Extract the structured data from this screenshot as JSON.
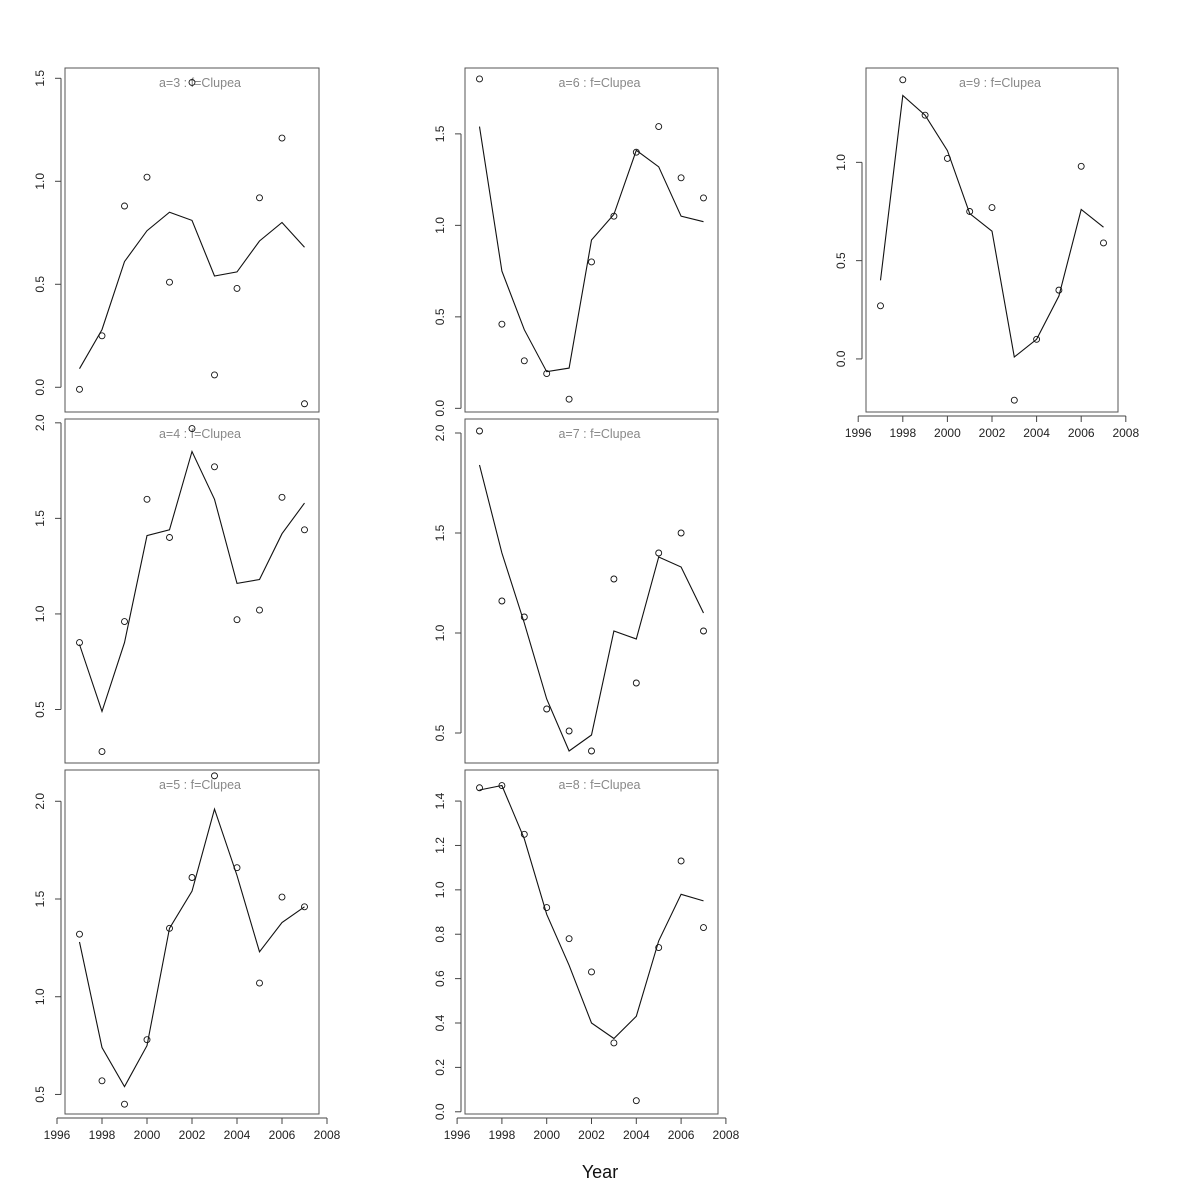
{
  "figure": {
    "xlabel": "Year"
  },
  "chart_data": [
    {
      "type": "line",
      "title": "a=3  :  f=Clupea",
      "xlim": [
        1997,
        2007
      ],
      "ylim": [
        -0.12,
        1.55
      ],
      "yticks": [
        "0.0",
        "0.5",
        "1.0",
        "1.5"
      ],
      "ytick_values": [
        0,
        0.5,
        1.0,
        1.5
      ],
      "xticks": [],
      "x": [
        1997,
        1998,
        1999,
        2000,
        2001,
        2002,
        2003,
        2004,
        2005,
        2006,
        2007
      ],
      "series": [
        {
          "kind": "line",
          "values": [
            0.09,
            0.28,
            0.61,
            0.76,
            0.85,
            0.81,
            0.54,
            0.56,
            0.71,
            0.8,
            0.68
          ]
        },
        {
          "kind": "points",
          "values": [
            -0.01,
            0.25,
            0.88,
            1.02,
            0.51,
            1.48,
            0.06,
            0.48,
            0.92,
            1.21,
            -0.08
          ]
        }
      ]
    },
    {
      "type": "line",
      "title": "a=4  :  f=Clupea",
      "xlim": [
        1997,
        2007
      ],
      "ylim": [
        0.22,
        2.02
      ],
      "yticks": [
        "0.5",
        "1.0",
        "1.5",
        "2.0"
      ],
      "ytick_values": [
        0.5,
        1.0,
        1.5,
        2.0
      ],
      "xticks": [],
      "x": [
        1997,
        1998,
        1999,
        2000,
        2001,
        2002,
        2003,
        2004,
        2005,
        2006,
        2007
      ],
      "series": [
        {
          "kind": "line",
          "values": [
            0.84,
            0.49,
            0.85,
            1.41,
            1.44,
            1.85,
            1.6,
            1.16,
            1.18,
            1.42,
            1.58
          ]
        },
        {
          "kind": "points",
          "values": [
            0.85,
            0.28,
            0.96,
            1.6,
            1.4,
            1.97,
            1.77,
            0.97,
            1.02,
            1.61,
            1.44
          ]
        }
      ]
    },
    {
      "type": "line",
      "title": "a=5  :  f=Clupea",
      "xlim": [
        1997,
        2007
      ],
      "ylim": [
        0.4,
        2.16
      ],
      "yticks": [
        "0.5",
        "1.0",
        "1.5",
        "2.0"
      ],
      "ytick_values": [
        0.5,
        1.0,
        1.5,
        2.0
      ],
      "xticks": [
        "1996",
        "1998",
        "2000",
        "2002",
        "2004",
        "2006",
        "2008"
      ],
      "x": [
        1997,
        1998,
        1999,
        2000,
        2001,
        2002,
        2003,
        2004,
        2005,
        2006,
        2007
      ],
      "series": [
        {
          "kind": "line",
          "values": [
            1.28,
            0.74,
            0.54,
            0.75,
            1.35,
            1.54,
            1.96,
            1.62,
            1.23,
            1.38,
            1.46
          ]
        },
        {
          "kind": "points",
          "values": [
            1.32,
            0.57,
            0.45,
            0.78,
            1.35,
            1.61,
            2.13,
            1.66,
            1.07,
            1.51,
            1.46
          ]
        }
      ]
    },
    {
      "type": "line",
      "title": "a=6  :  f=Clupea",
      "xlim": [
        1997,
        2007
      ],
      "ylim": [
        -0.02,
        1.86
      ],
      "yticks": [
        "0.0",
        "0.5",
        "1.0",
        "1.5"
      ],
      "ytick_values": [
        0,
        0.5,
        1.0,
        1.5
      ],
      "xticks": [],
      "x": [
        1997,
        1998,
        1999,
        2000,
        2001,
        2002,
        2003,
        2004,
        2005,
        2006,
        2007
      ],
      "series": [
        {
          "kind": "line",
          "values": [
            1.54,
            0.75,
            0.43,
            0.2,
            0.22,
            0.92,
            1.06,
            1.41,
            1.32,
            1.05,
            1.02
          ]
        },
        {
          "kind": "points",
          "values": [
            1.8,
            0.46,
            0.26,
            0.19,
            0.05,
            0.8,
            1.05,
            1.4,
            1.54,
            1.26,
            1.15
          ]
        }
      ]
    },
    {
      "type": "line",
      "title": "a=7  :  f=Clupea",
      "xlim": [
        1997,
        2007
      ],
      "ylim": [
        0.35,
        2.07
      ],
      "yticks": [
        "0.5",
        "1.0",
        "1.5",
        "2.0"
      ],
      "ytick_values": [
        0.5,
        1.0,
        1.5,
        2.0
      ],
      "xticks": [],
      "x": [
        1997,
        1998,
        1999,
        2000,
        2001,
        2002,
        2003,
        2004,
        2005,
        2006,
        2007
      ],
      "series": [
        {
          "kind": "line",
          "values": [
            1.84,
            1.4,
            1.05,
            0.67,
            0.41,
            0.49,
            1.01,
            0.97,
            1.38,
            1.33,
            1.1
          ]
        },
        {
          "kind": "points",
          "values": [
            2.01,
            1.16,
            1.08,
            0.62,
            0.51,
            0.41,
            1.27,
            0.75,
            1.4,
            1.5,
            1.01
          ]
        }
      ]
    },
    {
      "type": "line",
      "title": "a=8  :  f=Clupea",
      "xlim": [
        1997,
        2007
      ],
      "ylim": [
        -0.01,
        1.54
      ],
      "yticks": [
        "0.0",
        "0.2",
        "0.4",
        "0.6",
        "0.8",
        "1.0",
        "1.2",
        "1.4"
      ],
      "ytick_values": [
        0,
        0.2,
        0.4,
        0.6,
        0.8,
        1.0,
        1.2,
        1.4
      ],
      "xticks": [
        "1996",
        "1998",
        "2000",
        "2002",
        "2004",
        "2006",
        "2008"
      ],
      "x": [
        1997,
        1998,
        1999,
        2000,
        2001,
        2002,
        2003,
        2004,
        2005,
        2006,
        2007
      ],
      "series": [
        {
          "kind": "line",
          "values": [
            1.45,
            1.47,
            1.23,
            0.89,
            0.66,
            0.4,
            0.33,
            0.43,
            0.77,
            0.98,
            0.95
          ]
        },
        {
          "kind": "points",
          "values": [
            1.46,
            1.47,
            1.25,
            0.92,
            0.78,
            0.63,
            0.31,
            0.05,
            0.74,
            1.13,
            0.83
          ]
        }
      ]
    },
    {
      "type": "line",
      "title": "a=9  :  f=Clupea",
      "xlim": [
        1997,
        2007
      ],
      "ylim": [
        -0.27,
        1.48
      ],
      "yticks": [
        "0.0",
        "0.5",
        "1.0"
      ],
      "ytick_values": [
        0,
        0.5,
        1.0
      ],
      "xticks": [
        "1996",
        "1998",
        "2000",
        "2002",
        "2004",
        "2006",
        "2008"
      ],
      "x": [
        1997,
        1998,
        1999,
        2000,
        2001,
        2002,
        2003,
        2004,
        2005,
        2006,
        2007
      ],
      "series": [
        {
          "kind": "line",
          "values": [
            0.4,
            1.34,
            1.24,
            1.06,
            0.74,
            0.65,
            0.01,
            0.1,
            0.32,
            0.76,
            0.67
          ]
        },
        {
          "kind": "points",
          "values": [
            0.27,
            1.42,
            1.24,
            1.02,
            0.75,
            0.77,
            -0.21,
            0.1,
            0.35,
            0.98,
            0.59
          ]
        }
      ]
    }
  ]
}
